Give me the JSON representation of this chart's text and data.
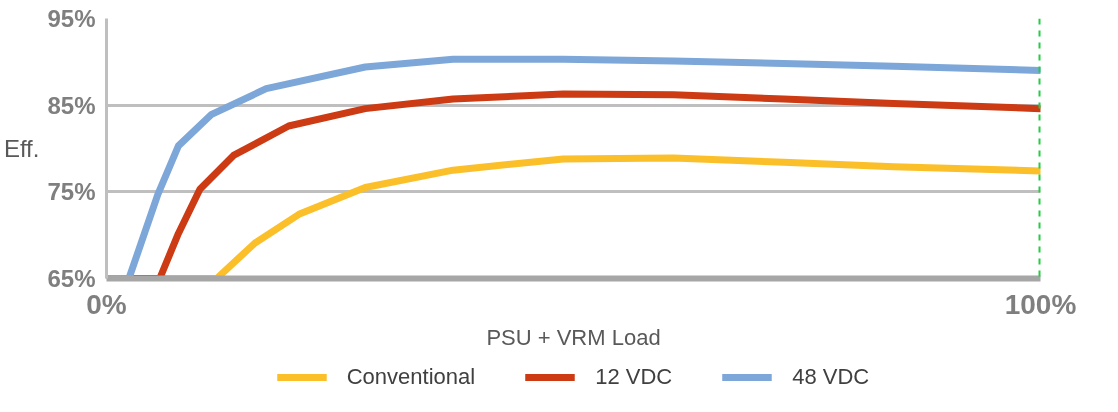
{
  "chart_data": {
    "type": "line",
    "xlabel": "PSU + VRM Load",
    "ylabel": "Eff.",
    "xlim": [
      0,
      100
    ],
    "ylim": [
      65,
      95
    ],
    "xticks": [
      {
        "value": 0,
        "label": "0%"
      },
      {
        "value": 100,
        "label": "100%"
      }
    ],
    "yticks": [
      {
        "value": 65,
        "label": "65%"
      },
      {
        "value": 75,
        "label": "75%"
      },
      {
        "value": 85,
        "label": "85%"
      },
      {
        "value": 95,
        "label": "95%"
      }
    ],
    "grid": "y",
    "legend": "bottom",
    "marker": "none",
    "line_style": "solid",
    "ref_lines": [
      {
        "axis": "x",
        "value": 100,
        "color": "#22cc44",
        "line_style": "dashed"
      }
    ],
    "series": [
      {
        "name": "Conventional",
        "color": "#fbbf2a",
        "x": [
          0,
          11.8,
          15.9,
          20.6,
          27.7,
          37.1,
          48.9,
          60.7,
          72.5,
          84.3,
          100
        ],
        "values": [
          65,
          65,
          69.1,
          72.4,
          75.5,
          77.5,
          78.8,
          78.9,
          78.4,
          77.9,
          77.4
        ]
      },
      {
        "name": "12 VDC",
        "color": "#cc3b13",
        "x": [
          0,
          5.7,
          7.7,
          10,
          13.6,
          19.5,
          27.7,
          37.1,
          48.9,
          60.7,
          72.5,
          84.3,
          100
        ],
        "values": [
          65,
          65,
          70.2,
          75.3,
          79.2,
          82.6,
          84.6,
          85.7,
          86.3,
          86.2,
          85.7,
          85.2,
          84.6
        ]
      },
      {
        "name": "48 VDC",
        "color": "#7da7d9",
        "x": [
          0,
          2.4,
          5.5,
          7.7,
          11.2,
          17.1,
          27.7,
          37.1,
          48.9,
          60.7,
          72.5,
          84.3,
          100
        ],
        "values": [
          65,
          65,
          74.7,
          80.3,
          83.9,
          86.9,
          89.4,
          90.3,
          90.3,
          90.1,
          89.8,
          89.5,
          89.0
        ]
      }
    ]
  }
}
